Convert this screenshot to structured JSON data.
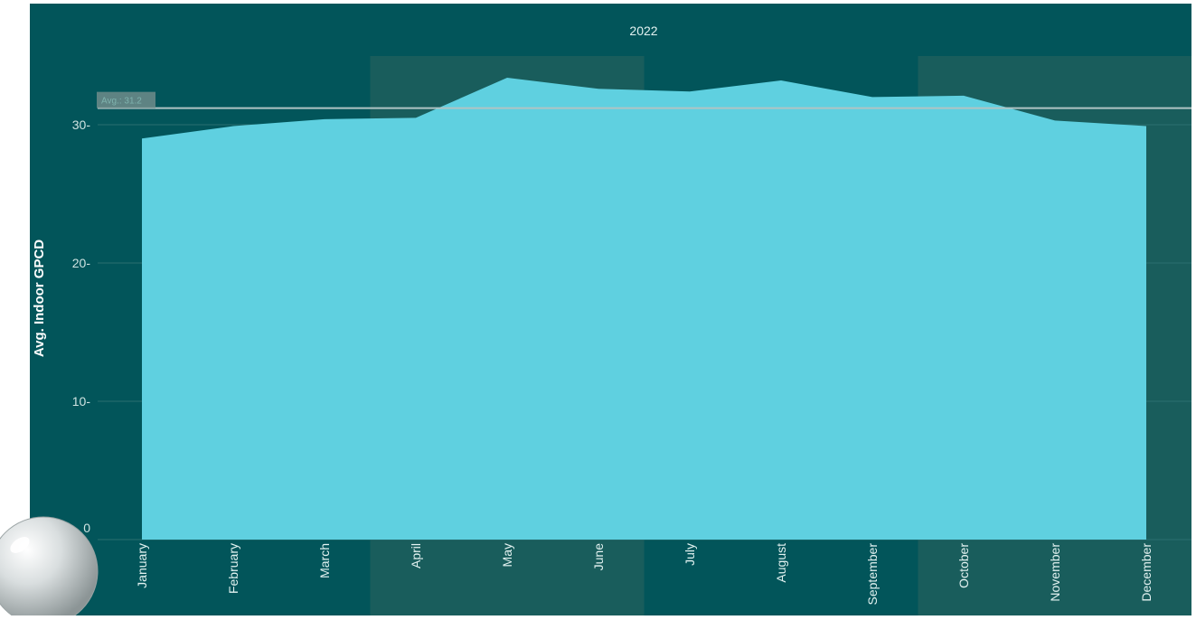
{
  "colors": {
    "page_background": "#ffffff",
    "panel_background": "#02555a",
    "band_shade": "#195d5c",
    "area_fill": "#5fd0e0",
    "avg_line": "#b0c4c4",
    "avg_label_bg": "#6e8c8b",
    "grid": "#2b6e70",
    "text": "#e3f2f1"
  },
  "decoration": {
    "corner_orb_icon": "glass-orb-icon"
  },
  "chart_data": {
    "type": "area",
    "panel_title": "2022",
    "ylabel": "Avg. Indoor GPCD",
    "xlabel": "",
    "categories": [
      "January",
      "February",
      "March",
      "April",
      "May",
      "June",
      "July",
      "August",
      "September",
      "October",
      "November",
      "December"
    ],
    "values": [
      29.0,
      29.9,
      30.4,
      30.5,
      33.4,
      32.6,
      32.4,
      33.2,
      32.0,
      32.1,
      30.3,
      29.9
    ],
    "ylim": [
      0,
      35
    ],
    "y_ticks": [
      {
        "value": 0,
        "label": "0"
      },
      {
        "value": 10,
        "label": "10-"
      },
      {
        "value": 20,
        "label": "20-"
      },
      {
        "value": 30,
        "label": "30-"
      }
    ],
    "average": {
      "value": 31.2,
      "label": "Avg.: 31.2"
    },
    "shaded_month_bands": [
      [
        "April",
        "June"
      ],
      [
        "October",
        "December"
      ]
    ],
    "grid": true
  }
}
